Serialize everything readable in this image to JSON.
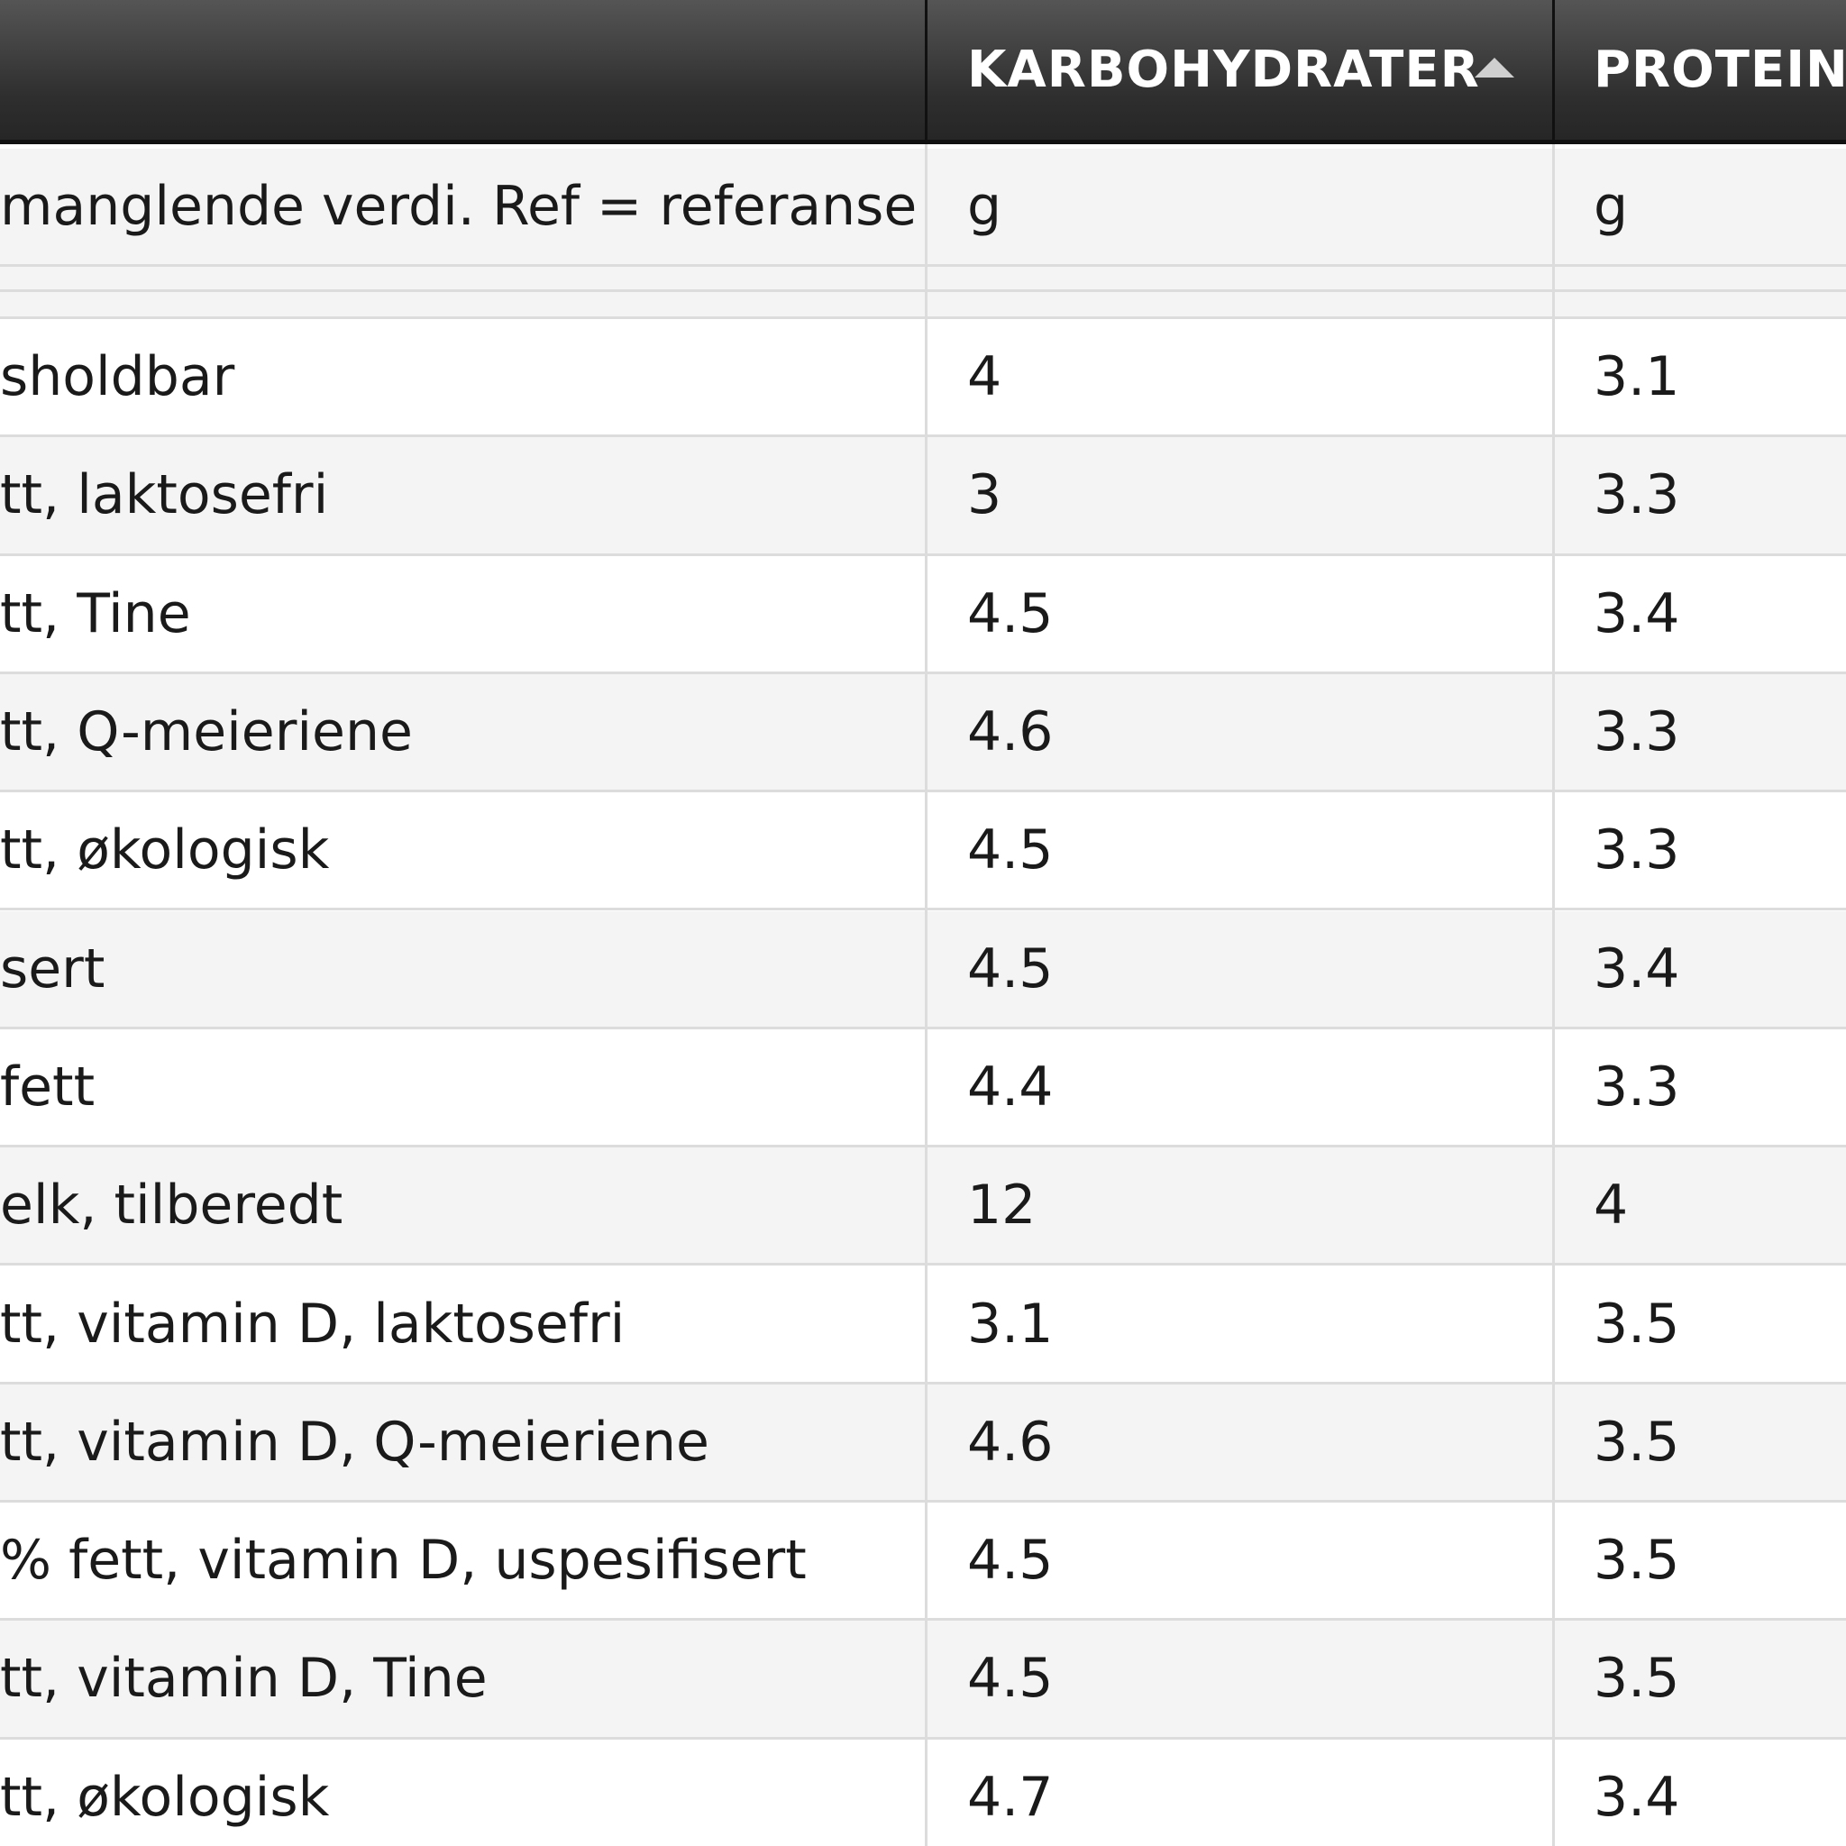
{
  "header": {
    "columns": [
      {
        "label": ""
      },
      {
        "label": "KARBOHYDRATER",
        "sorted": "ascending"
      },
      {
        "label": "PROTEIN"
      }
    ]
  },
  "unit_row": {
    "name": "manglende verdi. Ref = referanse",
    "carb": "g",
    "protein": "g"
  },
  "rows": [
    {
      "name": "sholdbar",
      "carb": "4",
      "protein": "3.1"
    },
    {
      "name": "tt, laktosefri",
      "carb": "3",
      "protein": "3.3"
    },
    {
      "name": "tt, Tine",
      "carb": "4.5",
      "protein": "3.4"
    },
    {
      "name": "tt, Q-meieriene",
      "carb": "4.6",
      "protein": "3.3"
    },
    {
      "name": "tt, økologisk",
      "carb": "4.5",
      "protein": "3.3"
    },
    {
      "name": "sert",
      "carb": "4.5",
      "protein": "3.4"
    },
    {
      "name": "fett",
      "carb": "4.4",
      "protein": "3.3"
    },
    {
      "name": "elk, tilberedt",
      "carb": "12",
      "protein": "4"
    },
    {
      "name": "tt, vitamin D, laktosefri",
      "carb": "3.1",
      "protein": "3.5"
    },
    {
      "name": "tt, vitamin D, Q-meieriene",
      "carb": "4.6",
      "protein": "3.5"
    },
    {
      "name": "% fett, vitamin D, uspesifisert",
      "carb": "4.5",
      "protein": "3.5"
    },
    {
      "name": "tt, vitamin D, Tine",
      "carb": "4.5",
      "protein": "3.5"
    },
    {
      "name": "tt, økologisk",
      "carb": "4.7",
      "protein": "3.4"
    }
  ],
  "colors": {
    "header_top": "#555555",
    "header_bottom": "#262626",
    "row_alt": "#f4f4f4",
    "row": "#ffffff",
    "grid": "#dcdcdc",
    "sort_arrow": "#cfcfcf"
  }
}
